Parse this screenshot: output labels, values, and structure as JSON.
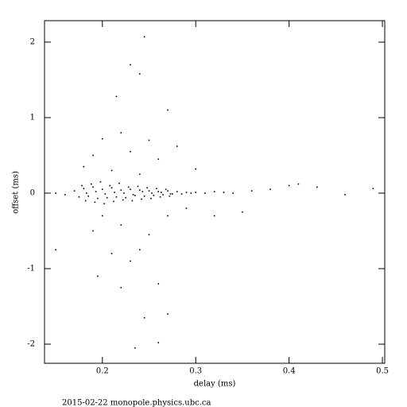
{
  "chart_data": {
    "type": "scatter",
    "xlabel": "delay (ms)",
    "ylabel": "offset (ms)",
    "footer": "2015-02-22 monopole.physics.ubc.ca",
    "color": "#000000",
    "x": [
      0.15,
      0.16,
      0.17,
      0.175,
      0.18,
      0.185,
      0.19,
      0.195,
      0.2,
      0.205,
      0.21,
      0.215,
      0.22,
      0.225,
      0.23,
      0.235,
      0.24,
      0.245,
      0.25,
      0.255,
      0.26,
      0.265,
      0.27,
      0.275,
      0.28,
      0.285,
      0.29,
      0.295,
      0.3,
      0.31,
      0.32,
      0.33,
      0.34,
      0.36,
      0.38,
      0.4,
      0.41,
      0.43,
      0.46,
      0.49,
      0.178,
      0.182,
      0.188,
      0.192,
      0.198,
      0.202,
      0.208,
      0.212,
      0.218,
      0.222,
      0.228,
      0.232,
      0.238,
      0.242,
      0.248,
      0.252,
      0.258,
      0.262,
      0.268,
      0.272,
      0.183,
      0.193,
      0.203,
      0.213,
      0.223,
      0.233,
      0.243,
      0.253,
      0.263,
      0.273,
      0.245,
      0.23,
      0.24,
      0.215,
      0.27,
      0.2,
      0.22,
      0.25,
      0.28,
      0.19,
      0.23,
      0.26,
      0.3,
      0.18,
      0.21,
      0.24,
      0.2,
      0.22,
      0.19,
      0.25,
      0.21,
      0.24,
      0.23,
      0.195,
      0.22,
      0.26,
      0.245,
      0.27,
      0.26,
      0.235,
      0.35,
      0.32,
      0.15,
      0.27,
      0.29
    ],
    "values": [
      0.0,
      -0.02,
      0.03,
      -0.05,
      0.06,
      -0.04,
      0.08,
      -0.07,
      0.05,
      -0.06,
      0.07,
      -0.05,
      0.04,
      -0.06,
      0.05,
      -0.03,
      0.04,
      -0.04,
      0.03,
      -0.03,
      0.02,
      -0.02,
      0.03,
      -0.01,
      0.02,
      -0.01,
      0.01,
      0.0,
      0.01,
      0.0,
      0.02,
      0.01,
      0.0,
      0.03,
      0.05,
      0.1,
      0.12,
      0.08,
      -0.02,
      0.06,
      0.1,
      -0.1,
      0.12,
      -0.12,
      0.15,
      -0.14,
      0.1,
      -0.11,
      0.13,
      -0.09,
      0.08,
      -0.1,
      0.09,
      -0.08,
      0.07,
      -0.07,
      0.06,
      -0.05,
      0.05,
      -0.04,
      0.0,
      0.02,
      -0.01,
      0.01,
      0.0,
      -0.02,
      0.02,
      0.0,
      0.01,
      -0.01,
      2.07,
      1.7,
      1.58,
      1.28,
      1.1,
      0.72,
      0.8,
      0.7,
      0.62,
      0.5,
      0.55,
      0.45,
      0.32,
      0.35,
      0.3,
      0.25,
      -0.3,
      -0.42,
      -0.5,
      -0.55,
      -0.8,
      -0.75,
      -0.9,
      -1.1,
      -1.25,
      -1.2,
      -1.65,
      -1.6,
      -1.98,
      -2.05,
      -0.25,
      -0.3,
      -0.75,
      -0.3,
      -0.2
    ],
    "xlim": [
      0.138,
      0.5025
    ],
    "ylim": [
      -2.253,
      2.284
    ],
    "xticks": [
      0.2,
      0.3,
      0.4,
      0.5
    ],
    "yticks": [
      -2,
      -1,
      0,
      1,
      2
    ]
  }
}
